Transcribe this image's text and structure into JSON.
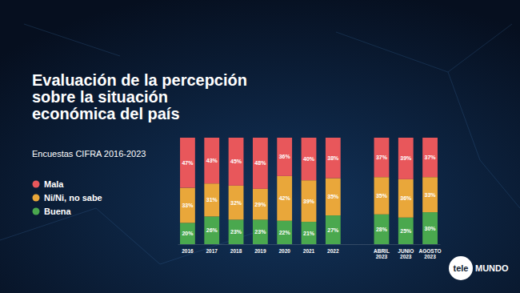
{
  "chart_data": {
    "type": "bar",
    "title": "Evaluación de la percepción sobre la situación económica del país",
    "subtitle": "Encuestas CIFRA 2016-2023",
    "annotations": [
      "tele",
      "MUNDO"
    ],
    "categories": [
      "2016",
      "2017",
      "2018",
      "2019",
      "2020",
      "2021",
      "2022",
      null,
      "ABRIL 2023",
      "JUNIO 2023",
      "AGOSTO 2023"
    ],
    "series": [
      {
        "name": "Mala",
        "color": "#e8575b",
        "values": [
          47,
          43,
          45,
          48,
          36,
          40,
          38,
          null,
          37,
          39,
          37
        ],
        "value_labels": [
          "47%",
          "43%",
          "45%",
          "48%",
          "36%",
          "40%",
          "38%",
          null,
          "37%",
          "39%",
          "37%"
        ]
      },
      {
        "name": "Ni/Ni, no sabe",
        "color": "#e9a73a",
        "values": [
          33,
          31,
          32,
          29,
          42,
          39,
          35,
          null,
          35,
          36,
          33
        ],
        "value_labels": [
          "33%",
          "31%",
          "32%",
          "29%",
          "42%",
          "39%",
          "35%",
          null,
          "35%",
          "36%",
          "33%"
        ]
      },
      {
        "name": "Buena",
        "color": "#4aa84e",
        "values": [
          20,
          26,
          23,
          23,
          22,
          21,
          27,
          null,
          28,
          25,
          30
        ],
        "value_labels": [
          "20%",
          "26%",
          "23%",
          "23%",
          "22%",
          "21%",
          "27%",
          null,
          "28%",
          "25%",
          "30%"
        ]
      }
    ],
    "ylim": [
      0,
      100
    ],
    "stacked": true,
    "data_labels": true,
    "tick_labels": "x",
    "legend": "left"
  }
}
